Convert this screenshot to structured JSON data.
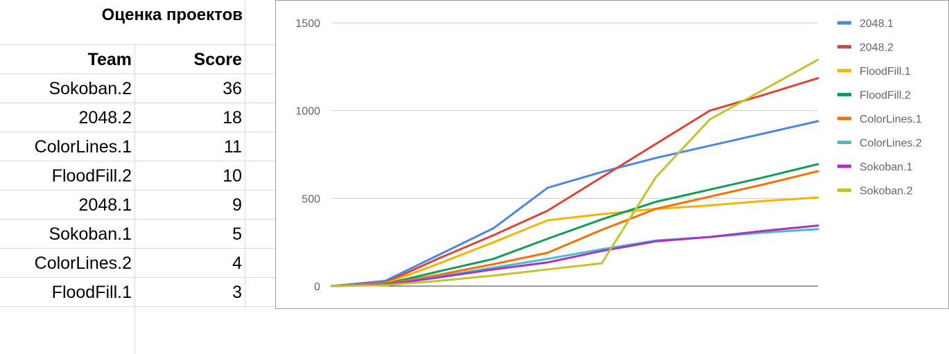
{
  "sheet": {
    "title": "Оценка проектов",
    "headers": {
      "team": "Team",
      "score": "Score"
    },
    "rows": [
      {
        "team": "Sokoban.2",
        "score": "36"
      },
      {
        "team": "2048.2",
        "score": "18"
      },
      {
        "team": "ColorLines.1",
        "score": "11"
      },
      {
        "team": "FloodFill.2",
        "score": "10"
      },
      {
        "team": "2048.1",
        "score": "9"
      },
      {
        "team": "Sokoban.1",
        "score": "5"
      },
      {
        "team": "ColorLines.2",
        "score": "4"
      },
      {
        "team": "FloodFill.1",
        "score": "3"
      }
    ]
  },
  "chart_data": {
    "type": "line",
    "title": "",
    "xlabel": "",
    "ylabel": "",
    "ylim": [
      0,
      1500
    ],
    "yticks": [
      "0",
      "500",
      "1000",
      "1500"
    ],
    "x": [
      0,
      1,
      2,
      3,
      4,
      5,
      6,
      7,
      8,
      9
    ],
    "grid": true,
    "legend_position": "right",
    "series": [
      {
        "name": "2048.1",
        "color": "#4a86e8",
        "values": [
          0,
          30,
          180,
          330,
          560,
          650,
          730,
          800,
          870,
          940
        ]
      },
      {
        "name": "2048.2",
        "color": "#db4437",
        "values": [
          0,
          20,
          160,
          290,
          430,
          620,
          810,
          1000,
          1090,
          1185
        ]
      },
      {
        "name": "FloodFill.1",
        "color": "#f4b400",
        "values": [
          0,
          15,
          130,
          250,
          375,
          410,
          440,
          460,
          485,
          505
        ]
      },
      {
        "name": "FloodFill.2",
        "color": "#0f9d58",
        "values": [
          0,
          12,
          85,
          155,
          270,
          380,
          480,
          550,
          620,
          695
        ]
      },
      {
        "name": "ColorLines.1",
        "color": "#ff6d01",
        "values": [
          0,
          10,
          65,
          125,
          190,
          320,
          440,
          510,
          580,
          655
        ]
      },
      {
        "name": "ColorLines.2",
        "color": "#46bdc6",
        "values": [
          0,
          8,
          55,
          105,
          155,
          210,
          260,
          280,
          305,
          325
        ]
      },
      {
        "name": "Sokoban.1",
        "color": "#ab30c4",
        "values": [
          0,
          8,
          50,
          95,
          135,
          200,
          255,
          280,
          315,
          345
        ]
      },
      {
        "name": "Sokoban.2",
        "color": "#c2c232",
        "values": [
          0,
          5,
          30,
          60,
          95,
          130,
          620,
          950,
          1120,
          1290
        ]
      }
    ]
  }
}
